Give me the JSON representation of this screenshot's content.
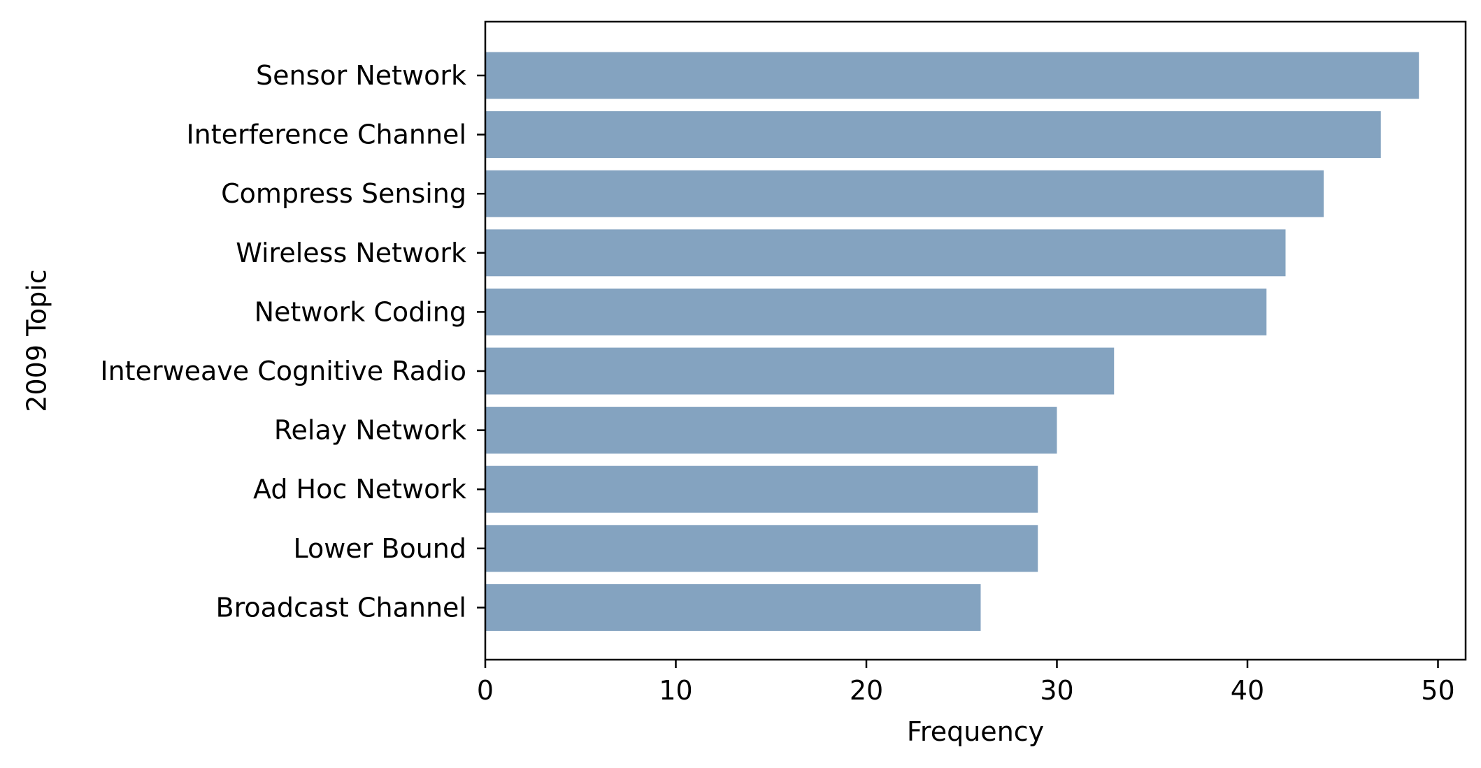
{
  "chart_data": {
    "type": "bar",
    "orientation": "horizontal",
    "categories": [
      "Sensor Network",
      "Interference Channel",
      "Compress Sensing",
      "Wireless Network",
      "Network Coding",
      "Interweave Cognitive Radio",
      "Relay Network",
      "Ad Hoc Network",
      "Lower Bound",
      "Broadcast Channel"
    ],
    "values": [
      49,
      47,
      44,
      42,
      41,
      33,
      30,
      29,
      29,
      26
    ],
    "xlabel": "Frequency",
    "ylabel": "2009 Topic",
    "xlim": [
      0,
      51.45
    ],
    "xticks": [
      0,
      10,
      20,
      30,
      40,
      50
    ],
    "grid": false,
    "bar_color": "#84a3c0"
  }
}
